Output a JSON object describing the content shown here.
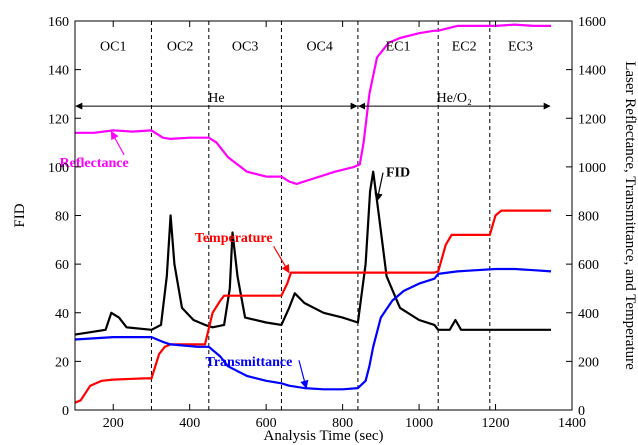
{
  "chart_data": {
    "type": "line",
    "xlabel": "Analysis Time (sec)",
    "ylabel": "FID",
    "y2label": "Laser Reflectance, Transmittance, and Temperature",
    "xlim": [
      100,
      1400
    ],
    "ylim": [
      0,
      160
    ],
    "y2lim": [
      0,
      1600
    ],
    "xticks": [
      200,
      400,
      600,
      800,
      1000,
      1200,
      1400
    ],
    "yticks": [
      0,
      20,
      40,
      60,
      80,
      100,
      120,
      140,
      160
    ],
    "y2ticks": [
      0,
      200,
      400,
      600,
      800,
      1000,
      1200,
      1400,
      1600
    ],
    "grid": false,
    "dividers": [
      300,
      450,
      640,
      840,
      1050,
      1185
    ],
    "phases": [
      {
        "label": "OC1",
        "x": 200
      },
      {
        "label": "OC2",
        "x": 375
      },
      {
        "label": "OC3",
        "x": 545
      },
      {
        "label": "OC4",
        "x": 740
      },
      {
        "label": "EC1",
        "x": 945
      },
      {
        "label": "EC2",
        "x": 1118
      },
      {
        "label": "EC3",
        "x": 1265
      }
    ],
    "carrier": [
      {
        "label": "He",
        "x_from": 100,
        "x_to": 840,
        "label_x": 470,
        "y": 125
      },
      {
        "label": "He/O₂",
        "x_from": 840,
        "x_to": 1345,
        "label_x": 1092,
        "y": 125
      }
    ],
    "series": [
      {
        "name": "FID",
        "axis": "left",
        "color": "#000000",
        "x": [
          100,
          180,
          195,
          215,
          235,
          300,
          325,
          340,
          350,
          360,
          380,
          410,
          440,
          460,
          490,
          505,
          512,
          525,
          545,
          600,
          640,
          660,
          675,
          700,
          750,
          800,
          840,
          860,
          872,
          880,
          895,
          915,
          950,
          1000,
          1040,
          1050,
          1080,
          1095,
          1110,
          1160,
          1200,
          1250,
          1345
        ],
        "y": [
          31,
          33,
          40,
          38,
          34,
          33,
          35,
          55,
          80,
          60,
          42,
          37,
          35,
          34,
          35,
          50,
          73,
          55,
          38,
          36,
          35,
          42,
          48,
          44,
          40,
          38,
          36,
          60,
          90,
          98,
          80,
          55,
          42,
          37,
          35,
          33,
          33,
          37,
          33,
          33,
          33,
          33,
          33
        ]
      },
      {
        "name": "Reflectance",
        "axis": "right",
        "color": "#ff00ff",
        "x": [
          100,
          150,
          200,
          250,
          300,
          330,
          350,
          400,
          450,
          470,
          500,
          550,
          600,
          640,
          660,
          680,
          720,
          780,
          830,
          845,
          855,
          870,
          890,
          920,
          950,
          1000,
          1040,
          1050,
          1100,
          1150,
          1200,
          1250,
          1300,
          1345
        ],
        "y": [
          1140,
          1140,
          1150,
          1145,
          1150,
          1120,
          1115,
          1120,
          1120,
          1100,
          1040,
          980,
          960,
          960,
          940,
          930,
          950,
          980,
          1000,
          1010,
          1100,
          1300,
          1450,
          1510,
          1530,
          1550,
          1560,
          1560,
          1580,
          1580,
          1580,
          1585,
          1580,
          1580
        ]
      },
      {
        "name": "Temperature",
        "axis": "right",
        "color": "#ff0000",
        "x": [
          100,
          115,
          140,
          170,
          200,
          280,
          300,
          320,
          335,
          350,
          440,
          460,
          480,
          490,
          520,
          620,
          640,
          655,
          665,
          680,
          800,
          840,
          900,
          1000,
          1040,
          1050,
          1070,
          1085,
          1175,
          1185,
          1200,
          1215,
          1345
        ],
        "y": [
          30,
          40,
          100,
          120,
          125,
          130,
          130,
          230,
          260,
          270,
          270,
          400,
          450,
          470,
          470,
          470,
          470,
          520,
          565,
          565,
          565,
          565,
          565,
          565,
          565,
          570,
          680,
          720,
          720,
          720,
          800,
          820,
          820
        ]
      },
      {
        "name": "Transmittance",
        "axis": "right",
        "color": "#0000ff",
        "x": [
          100,
          200,
          300,
          330,
          350,
          420,
          450,
          480,
          500,
          550,
          600,
          640,
          660,
          700,
          750,
          800,
          840,
          860,
          870,
          880,
          900,
          930,
          960,
          1000,
          1040,
          1050,
          1100,
          1150,
          1200,
          1250,
          1300,
          1345
        ],
        "y": [
          290,
          300,
          300,
          280,
          270,
          260,
          260,
          220,
          180,
          140,
          120,
          110,
          100,
          90,
          85,
          85,
          90,
          120,
          180,
          260,
          380,
          450,
          490,
          520,
          540,
          560,
          570,
          575,
          580,
          580,
          575,
          570
        ]
      }
    ],
    "annotations": [
      {
        "name": "Reflectance",
        "text": "Reflectance",
        "color": "#ff00ff",
        "text_x": 150,
        "text_y": 1000,
        "arrow_to_x": 195,
        "arrow_to_y": 1145
      },
      {
        "name": "FID",
        "text": "FID",
        "color": "#000000",
        "text_x": 945,
        "text_y": 96,
        "arrow_to_x": 890,
        "arrow_to_y": 86
      },
      {
        "name": "Temperature",
        "text": "Temperature",
        "color": "#ff0000",
        "text_x": 515,
        "text_y": 69,
        "arrow_to_x": 660,
        "arrow_to_y": 565
      },
      {
        "name": "Transmittance",
        "text": "Transmittance",
        "color": "#0000ff",
        "text_x": 555,
        "text_y": 18,
        "arrow_to_x": 705,
        "arrow_to_y": 90
      }
    ]
  }
}
